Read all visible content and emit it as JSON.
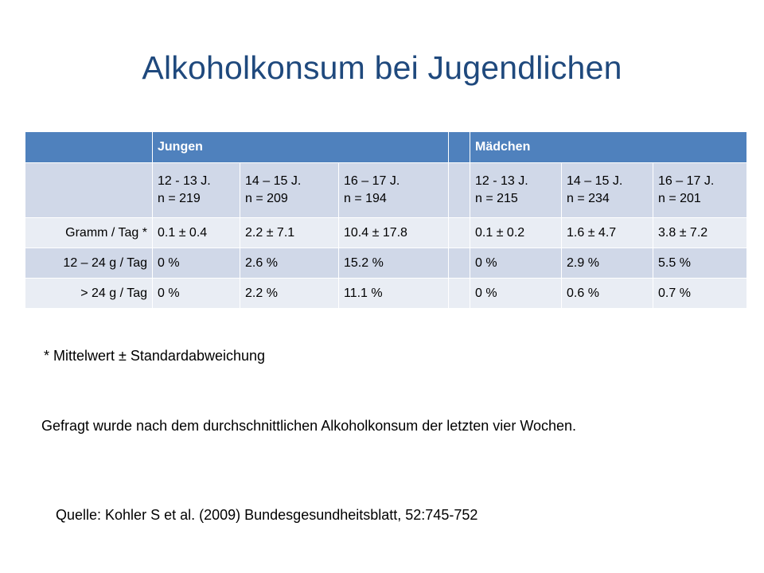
{
  "title": "Alkoholkonsum bei Jugendlichen",
  "table": {
    "groups": [
      "Jungen",
      "Mädchen"
    ],
    "age_columns": [
      {
        "age": "12 - 13 J.",
        "n": "n = 219"
      },
      {
        "age": "14 – 15 J.",
        "n": "n = 209"
      },
      {
        "age": "16 – 17 J.",
        "n": "n = 194"
      },
      {
        "age": "12 - 13 J.",
        "n": "n = 215"
      },
      {
        "age": "14 – 15 J.",
        "n": "n = 234"
      },
      {
        "age": "16 – 17 J.",
        "n": "n = 201"
      }
    ],
    "rows": [
      {
        "label": "Gramm / Tag *",
        "values": [
          "0.1 ± 0.4",
          "2.2 ± 7.1",
          "10.4 ± 17.8",
          "0.1 ± 0.2",
          "1.6 ± 4.7",
          "3.8 ± 7.2"
        ]
      },
      {
        "label": "12 – 24 g / Tag",
        "values": [
          "0 %",
          "2.6 %",
          "15.2 %",
          "0 %",
          "2.9 %",
          "5.5 %"
        ]
      },
      {
        "label": "> 24 g / Tag",
        "values": [
          "0 %",
          "2.2 %",
          "11.1 %",
          "0 %",
          "0.6 %",
          "0.7 %"
        ]
      }
    ]
  },
  "footnote": "* Mittelwert ± Standardabweichung",
  "question_note": "Gefragt wurde nach dem durchschnittlichen Alkoholkonsum der letzten vier Wochen.",
  "source": "Quelle: Kohler S et al. (2009) Bundesgesundheitsblatt, 52:745-752",
  "colors": {
    "title": "#1f497d",
    "header": "#4f81bd",
    "band_dark": "#d0d8e8",
    "band_light": "#e9edf4"
  }
}
